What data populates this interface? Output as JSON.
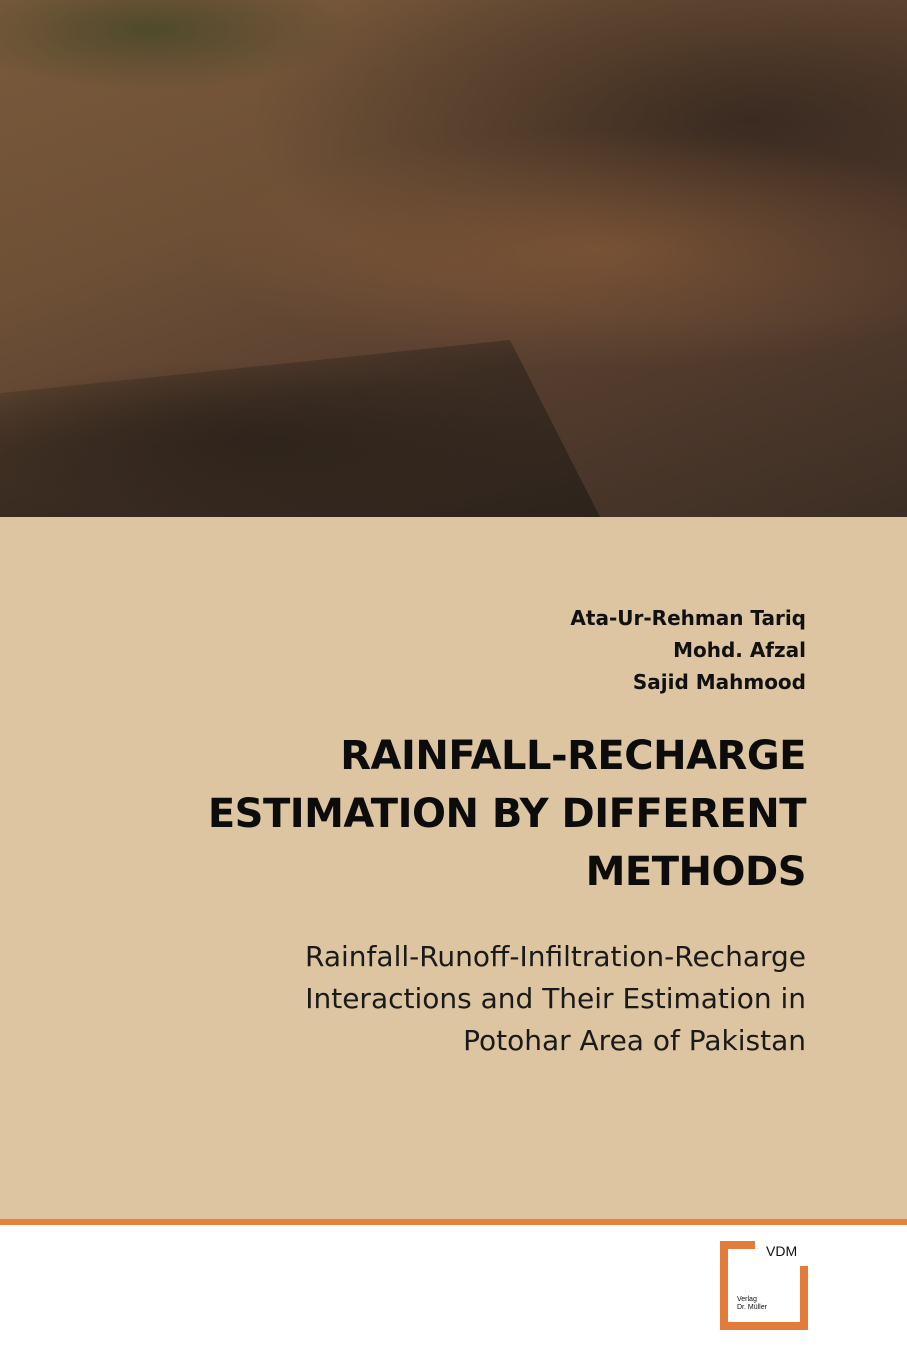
{
  "cover": {
    "authors": [
      "Ata-Ur-Rehman Tariq",
      "Mohd. Afzal",
      "Sajid Mahmood"
    ],
    "title_lines": [
      "RAINFALL-RECHARGE",
      "ESTIMATION BY DIFFERENT",
      "METHODS"
    ],
    "subtitle_lines": [
      "Rainfall-Runoff-Infiltration-Recharge",
      "Interactions and Their Estimation in",
      "Potohar Area of Pakistan"
    ]
  },
  "publisher": {
    "logo_text": "VDM",
    "name_lines": [
      "Verlag",
      "Dr. Müller"
    ],
    "accent_color": "#e37b3a"
  },
  "colors": {
    "background": "#dcc5a0",
    "band": "#e6823e"
  }
}
